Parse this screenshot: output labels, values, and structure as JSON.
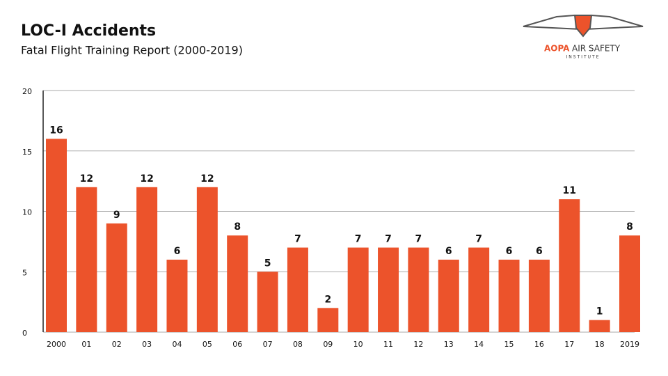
{
  "chart_data": {
    "type": "bar",
    "title": "LOC-I Accidents",
    "subtitle": "Fatal Flight Training Report (2000-2019)",
    "categories": [
      "2000",
      "01",
      "02",
      "03",
      "04",
      "05",
      "06",
      "07",
      "08",
      "09",
      "10",
      "11",
      "12",
      "13",
      "14",
      "15",
      "16",
      "17",
      "18",
      "2019"
    ],
    "values": [
      16,
      12,
      9,
      12,
      6,
      12,
      8,
      5,
      7,
      2,
      7,
      7,
      7,
      6,
      7,
      6,
      6,
      11,
      1,
      8
    ],
    "color": "#ec532b",
    "ylim": [
      0,
      20
    ],
    "yticks": [
      0,
      5,
      10,
      15,
      20
    ],
    "grid": true
  },
  "logo": {
    "brand": "AOPA",
    "name": "AIR SAFETY",
    "sub": "INSTITUTE"
  }
}
